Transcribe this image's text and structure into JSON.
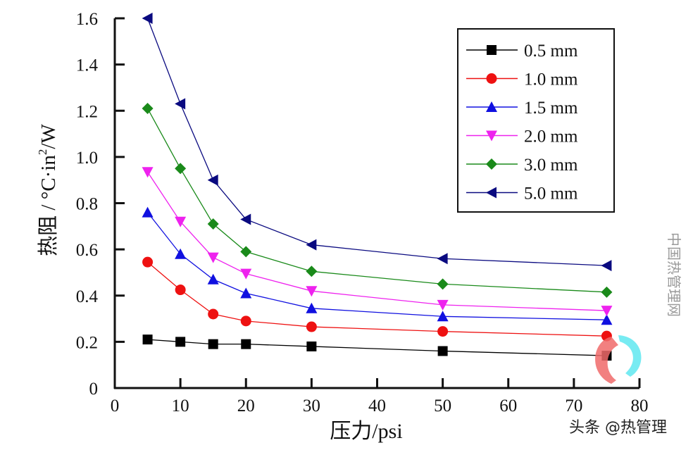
{
  "chart_data": {
    "type": "line",
    "title": "",
    "xlabel": "压力/psi",
    "ylabel": "热阻 / °C·in²/W",
    "ylabel_parts": {
      "main": "热阻 / °C·in",
      "sup": "2",
      "tail": "/W"
    },
    "xlim": [
      0,
      80
    ],
    "ylim": [
      0,
      1.6
    ],
    "x_ticks": [
      0,
      10,
      20,
      30,
      40,
      50,
      60,
      70,
      80
    ],
    "x_tick_labels": [
      "0",
      "10",
      "20",
      "30",
      "40",
      "50",
      "60",
      "70",
      "80"
    ],
    "y_ticks": [
      0,
      0.2,
      0.4,
      0.6,
      0.8,
      1.0,
      1.2,
      1.4,
      1.6
    ],
    "y_tick_labels": [
      "0",
      "0.2",
      "0.4",
      "0.6",
      "0.8",
      "1.0",
      "1.2",
      "1.4",
      "1.6"
    ],
    "grid": false,
    "legend_position": "top-right",
    "x": [
      5,
      10,
      15,
      20,
      30,
      50,
      75
    ],
    "series": [
      {
        "name": "0.5 mm",
        "color": "#000000",
        "marker": "square",
        "values": [
          0.21,
          0.2,
          0.19,
          0.19,
          0.18,
          0.16,
          0.14
        ]
      },
      {
        "name": "1.0 mm",
        "color": "#ee1111",
        "marker": "circle",
        "values": [
          0.545,
          0.425,
          0.32,
          0.29,
          0.265,
          0.245,
          0.225
        ]
      },
      {
        "name": "1.5 mm",
        "color": "#1010e0",
        "marker": "triangle-up",
        "values": [
          0.76,
          0.58,
          0.47,
          0.41,
          0.345,
          0.31,
          0.295
        ]
      },
      {
        "name": "2.0 mm",
        "color": "#ee22ee",
        "marker": "triangle-down",
        "values": [
          0.935,
          0.72,
          0.565,
          0.495,
          0.42,
          0.36,
          0.335
        ]
      },
      {
        "name": "3.0 mm",
        "color": "#1a8a1a",
        "marker": "diamond",
        "values": [
          1.21,
          0.95,
          0.71,
          0.59,
          0.505,
          0.45,
          0.415
        ]
      },
      {
        "name": "5.0 mm",
        "color": "#0a0a80",
        "marker": "triangle-left",
        "values": [
          1.6,
          1.23,
          0.9,
          0.73,
          0.62,
          0.56,
          0.53
        ]
      }
    ]
  },
  "watermark": {
    "site": "中国热管理网",
    "credit": "头条 @热管理",
    "logo_colors": [
      "#f06a6a",
      "#5fe8f0"
    ]
  }
}
